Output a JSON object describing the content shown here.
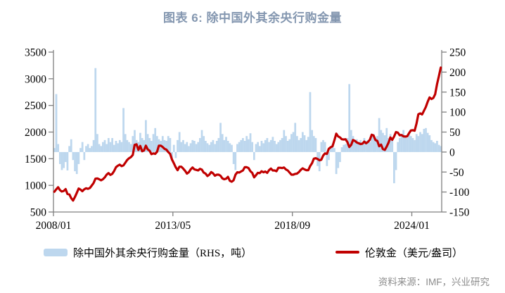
{
  "title": "图表 6: 除中国外其余央行购金量",
  "source": "资料来源：IMF，兴业研究",
  "colors": {
    "title": "#8497B0",
    "bars": "#BDD7EE",
    "line": "#C00000",
    "axis": "#808080",
    "source_text": "#8C8C8C"
  },
  "legend": {
    "bar_label": "除中国外其余央行购金量（RHS，吨）",
    "line_label": "伦敦金（美元/盎司）"
  },
  "chart_data": {
    "type": "combo_bar_line",
    "title": "图表 6: 除中国外其余央行购金量",
    "x_start": "2008/01",
    "x_end": "2025/04",
    "frequency": "monthly",
    "grid": false,
    "legend_position": "bottom",
    "x_ticks": [
      {
        "label": "2008/01",
        "month_index": 0
      },
      {
        "label": "2013/05",
        "month_index": 64
      },
      {
        "label": "2018/09",
        "month_index": 128
      },
      {
        "label": "2024/01",
        "month_index": 192
      }
    ],
    "left_axis": {
      "min": 500,
      "max": 3500,
      "ticks": [
        500,
        1000,
        1500,
        2000,
        2500,
        3000,
        3500
      ]
    },
    "right_axis": {
      "min": -150,
      "max": 250,
      "ticks": [
        -150,
        -100,
        -50,
        0,
        50,
        100,
        150,
        200,
        250
      ]
    },
    "series": [
      {
        "name": "除中国外其余央行购金量（RHS，吨）",
        "type": "bar",
        "axis": "right",
        "unit": "吨",
        "values_by_year": {
          "2008": [
            10,
            145,
            20,
            -30,
            -45,
            -40,
            -25,
            -46,
            15,
            32,
            -20,
            -48
          ],
          "2009": [
            -55,
            -30,
            10,
            25,
            -20,
            15,
            20,
            10,
            15,
            30,
            210,
            45
          ],
          "2010": [
            20,
            15,
            25,
            30,
            20,
            35,
            25,
            35,
            18,
            28,
            22,
            30
          ],
          "2011": [
            25,
            110,
            45,
            30,
            25,
            20,
            40,
            55,
            30,
            25,
            48,
            35
          ],
          "2012": [
            30,
            80,
            45,
            35,
            28,
            45,
            60,
            40,
            32,
            28,
            40,
            30
          ],
          "2013": [
            28,
            40,
            35,
            -18,
            18,
            -15,
            30,
            50,
            25,
            30,
            20,
            25
          ],
          "2014": [
            15,
            22,
            30,
            28,
            20,
            25,
            35,
            55,
            40,
            28,
            22,
            18
          ],
          "2015": [
            25,
            30,
            20,
            28,
            35,
            73,
            45,
            30,
            38,
            28,
            22,
            18
          ],
          "2016": [
            -30,
            -45,
            20,
            25,
            30,
            35,
            28,
            40,
            32,
            47,
            25,
            -20
          ],
          "2017": [
            20,
            25,
            15,
            28,
            22,
            30,
            35,
            25,
            30,
            38,
            28,
            20
          ],
          "2018": [
            25,
            30,
            35,
            55,
            40,
            28,
            32,
            45,
            50,
            73,
            40,
            30
          ],
          "2019": [
            35,
            50,
            42,
            30,
            38,
            150,
            55,
            40,
            35,
            -35,
            -48,
            25
          ],
          "2020": [
            30,
            25,
            -35,
            -20,
            15,
            20,
            10,
            -55,
            -40,
            -25,
            12,
            18
          ],
          "2021": [
            20,
            35,
            170,
            55,
            40,
            28,
            32,
            25,
            30,
            20,
            35,
            28
          ],
          "2022": [
            30,
            25,
            38,
            45,
            35,
            40,
            85,
            55,
            48,
            42,
            60,
            35
          ],
          "2023": [
            45,
            30,
            -78,
            -45,
            25,
            35,
            45,
            55,
            40,
            35,
            45,
            40
          ],
          "2024": [
            35,
            30,
            45,
            40,
            50,
            45,
            58,
            60,
            48,
            42,
            30,
            25
          ],
          "2025": [
            22,
            28,
            18,
            15
          ]
        }
      },
      {
        "name": "伦敦金（美元/盎司）",
        "type": "line",
        "axis": "left",
        "unit": "美元/盎司",
        "values_by_year": {
          "2008": [
            880,
            925,
            965,
            910,
            885,
            895,
            930,
            838,
            830,
            760,
            715,
            780
          ],
          "2009": [
            860,
            940,
            920,
            890,
            925,
            945,
            935,
            950,
            995,
            1045,
            1125,
            1130
          ],
          "2010": [
            1115,
            1095,
            1115,
            1150,
            1200,
            1230,
            1195,
            1215,
            1270,
            1340,
            1370,
            1390
          ],
          "2011": [
            1360,
            1375,
            1425,
            1475,
            1510,
            1530,
            1570,
            1760,
            1770,
            1665,
            1740,
            1640
          ],
          "2012": [
            1655,
            1745,
            1675,
            1650,
            1585,
            1600,
            1590,
            1630,
            1745,
            1745,
            1720,
            1685
          ],
          "2013": [
            1670,
            1625,
            1590,
            1485,
            1415,
            1340,
            1285,
            1350,
            1350,
            1315,
            1275,
            1220
          ],
          "2014": [
            1245,
            1300,
            1335,
            1300,
            1290,
            1280,
            1310,
            1295,
            1240,
            1220,
            1175,
            1200
          ],
          "2015": [
            1250,
            1225,
            1180,
            1200,
            1200,
            1180,
            1130,
            1115,
            1125,
            1160,
            1085,
            1068
          ],
          "2016": [
            1095,
            1200,
            1245,
            1240,
            1260,
            1280,
            1340,
            1340,
            1325,
            1265,
            1235,
            1150
          ],
          "2017": [
            1190,
            1235,
            1230,
            1265,
            1245,
            1260,
            1235,
            1285,
            1315,
            1280,
            1280,
            1265
          ],
          "2018": [
            1330,
            1330,
            1325,
            1335,
            1300,
            1280,
            1240,
            1200,
            1200,
            1215,
            1220,
            1250
          ],
          "2019": [
            1290,
            1320,
            1300,
            1285,
            1285,
            1360,
            1415,
            1500,
            1510,
            1495,
            1470,
            1480
          ],
          "2020": [
            1560,
            1600,
            1590,
            1685,
            1715,
            1735,
            1845,
            1970,
            1920,
            1900,
            1865,
            1860
          ],
          "2021": [
            1865,
            1810,
            1720,
            1760,
            1850,
            1835,
            1805,
            1790,
            1775,
            1780,
            1820,
            1790
          ],
          "2022": [
            1815,
            1855,
            1950,
            1935,
            1850,
            1835,
            1735,
            1765,
            1680,
            1665,
            1725,
            1800
          ],
          "2023": [
            1900,
            1855,
            1915,
            2000,
            1990,
            1940,
            1945,
            1920,
            1915,
            1920,
            1980,
            2030
          ],
          "2024": [
            2035,
            2025,
            2160,
            2335,
            2350,
            2330,
            2400,
            2470,
            2570,
            2650,
            2620,
            2640
          ],
          "2025": [
            2710,
            2900,
            3050,
            3210
          ]
        }
      }
    ]
  }
}
